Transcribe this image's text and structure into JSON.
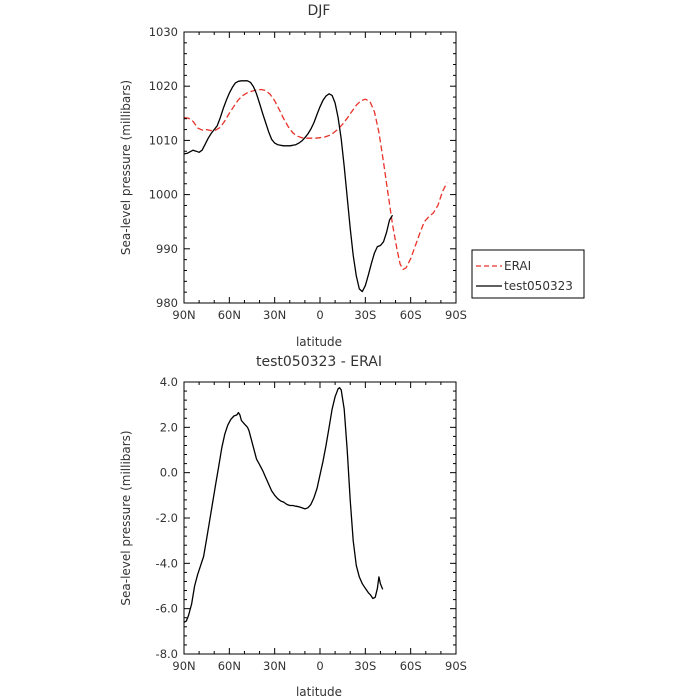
{
  "chart_data": [
    {
      "type": "line",
      "title": "DJF",
      "xlabel": "latitude",
      "ylabel": "Sea-level pressure (millibars)",
      "xlim": [
        90,
        -90
      ],
      "ylim": [
        980,
        1030
      ],
      "x_ticks": [
        90,
        60,
        30,
        0,
        -30,
        -60,
        -90
      ],
      "x_tick_labels": [
        "90N",
        "60N",
        "30N",
        "0",
        "30S",
        "60S",
        "90S"
      ],
      "y_ticks": [
        980,
        990,
        1000,
        1010,
        1020,
        1030
      ],
      "y_tick_labels": [
        "980",
        "990",
        "1000",
        "1010",
        "1020",
        "1030"
      ],
      "grid": false,
      "legend": "outside-right",
      "series": [
        {
          "name": "ERAI",
          "color": "#e8322a",
          "dash": "dashed",
          "points": [
            [
              90,
              1014.2
            ],
            [
              87,
              1014.1
            ],
            [
              84,
              1013.5
            ],
            [
              81,
              1012.3
            ],
            [
              78,
              1011.9
            ],
            [
              75,
              1012.0
            ],
            [
              72,
              1011.8
            ],
            [
              69,
              1011.9
            ],
            [
              66,
              1012.4
            ],
            [
              63,
              1013.6
            ],
            [
              60,
              1015.0
            ],
            [
              57,
              1016.3
            ],
            [
              54,
              1017.5
            ],
            [
              51,
              1018.3
            ],
            [
              48,
              1018.8
            ],
            [
              45,
              1019.1
            ],
            [
              42,
              1019.3
            ],
            [
              39,
              1019.4
            ],
            [
              36,
              1019.2
            ],
            [
              33,
              1018.5
            ],
            [
              30,
              1017.3
            ],
            [
              27,
              1015.7
            ],
            [
              24,
              1014.0
            ],
            [
              21,
              1012.5
            ],
            [
              18,
              1011.4
            ],
            [
              15,
              1010.8
            ],
            [
              12,
              1010.5
            ],
            [
              9,
              1010.4
            ],
            [
              6,
              1010.4
            ],
            [
              3,
              1010.4
            ],
            [
              0,
              1010.5
            ],
            [
              -3,
              1010.6
            ],
            [
              -6,
              1010.9
            ],
            [
              -9,
              1011.4
            ],
            [
              -12,
              1012.1
            ],
            [
              -15,
              1013.0
            ],
            [
              -18,
              1014.1
            ],
            [
              -21,
              1015.3
            ],
            [
              -24,
              1016.5
            ],
            [
              -27,
              1017.3
            ],
            [
              -30,
              1017.6
            ],
            [
              -33,
              1017.2
            ],
            [
              -36,
              1015.3
            ],
            [
              -39,
              1011.5
            ],
            [
              -42,
              1006.0
            ],
            [
              -45,
              1000.2
            ],
            [
              -48,
              994.5
            ],
            [
              -51,
              989.8
            ],
            [
              -53,
              987.2
            ],
            [
              -55,
              986.2
            ],
            [
              -57,
              986.5
            ],
            [
              -60,
              988.2
            ],
            [
              -63,
              990.5
            ],
            [
              -66,
              992.8
            ],
            [
              -69,
              995.0
            ],
            [
              -72,
              995.9
            ],
            [
              -75,
              996.6
            ],
            [
              -78,
              998.0
            ],
            [
              -81,
              1000.5
            ],
            [
              -84,
              1002.2
            ]
          ]
        },
        {
          "name": "test050323",
          "color": "#000000",
          "dash": "solid",
          "points": [
            [
              90,
              1007.5
            ],
            [
              88,
              1007.6
            ],
            [
              86,
              1007.9
            ],
            [
              84,
              1008.2
            ],
            [
              82,
              1008.0
            ],
            [
              80,
              1007.8
            ],
            [
              78,
              1008.2
            ],
            [
              76,
              1009.3
            ],
            [
              74,
              1010.4
            ],
            [
              72,
              1011.3
            ],
            [
              70,
              1012.0
            ],
            [
              68,
              1012.7
            ],
            [
              66,
              1014.2
            ],
            [
              64,
              1015.9
            ],
            [
              62,
              1017.4
            ],
            [
              60,
              1018.7
            ],
            [
              58,
              1019.8
            ],
            [
              56,
              1020.6
            ],
            [
              54,
              1020.9
            ],
            [
              52,
              1021.0
            ],
            [
              50,
              1021.0
            ],
            [
              48,
              1021.0
            ],
            [
              46,
              1020.7
            ],
            [
              44,
              1019.9
            ],
            [
              42,
              1018.6
            ],
            [
              40,
              1016.8
            ],
            [
              38,
              1015.0
            ],
            [
              36,
              1013.3
            ],
            [
              34,
              1011.6
            ],
            [
              32,
              1010.2
            ],
            [
              30,
              1009.5
            ],
            [
              28,
              1009.2
            ],
            [
              26,
              1009.1
            ],
            [
              24,
              1009.0
            ],
            [
              22,
              1009.0
            ],
            [
              20,
              1009.0
            ],
            [
              18,
              1009.1
            ],
            [
              16,
              1009.2
            ],
            [
              14,
              1009.5
            ],
            [
              12,
              1009.9
            ],
            [
              10,
              1010.5
            ],
            [
              8,
              1011.2
            ],
            [
              6,
              1012.1
            ],
            [
              4,
              1013.3
            ],
            [
              2,
              1014.8
            ],
            [
              0,
              1016.2
            ],
            [
              -2,
              1017.4
            ],
            [
              -4,
              1018.2
            ],
            [
              -6,
              1018.6
            ],
            [
              -8,
              1018.3
            ],
            [
              -10,
              1016.9
            ],
            [
              -12,
              1014.2
            ],
            [
              -14,
              1010.3
            ],
            [
              -16,
              1005.2
            ],
            [
              -18,
              999.5
            ],
            [
              -20,
              993.8
            ],
            [
              -22,
              988.8
            ],
            [
              -24,
              985.0
            ],
            [
              -26,
              982.6
            ],
            [
              -28,
              982.1
            ],
            [
              -30,
              983.2
            ],
            [
              -32,
              985.2
            ],
            [
              -34,
              987.3
            ],
            [
              -36,
              989.2
            ],
            [
              -38,
              990.4
            ],
            [
              -40,
              990.6
            ],
            [
              -42,
              991.3
            ],
            [
              -44,
              993.0
            ],
            [
              -46,
              995.3
            ],
            [
              -48,
              996.2
            ]
          ]
        }
      ]
    },
    {
      "type": "line",
      "title": "test050323 - ERAI",
      "xlabel": "latitude",
      "ylabel": "Sea-level pressure (millibars)",
      "xlim": [
        90,
        -90
      ],
      "ylim": [
        -8,
        4
      ],
      "x_ticks": [
        90,
        60,
        30,
        0,
        -30,
        -60,
        -90
      ],
      "x_tick_labels": [
        "90N",
        "60N",
        "30N",
        "0",
        "30S",
        "60S",
        "90S"
      ],
      "y_ticks": [
        -8,
        -6,
        -4,
        -2,
        0,
        2,
        4
      ],
      "y_tick_labels": [
        "-8.0",
        "-6.0",
        "-4.0",
        "-2.0",
        "0.0",
        "2.0",
        "4.0"
      ],
      "grid": false,
      "series": [
        {
          "color": "#000000",
          "dash": "solid",
          "points": [
            [
              90,
              -6.6
            ],
            [
              88.5,
              -6.55
            ],
            [
              87,
              -6.3
            ],
            [
              85,
              -5.8
            ],
            [
              83,
              -5.0
            ],
            [
              81,
              -4.5
            ],
            [
              79,
              -4.1
            ],
            [
              77,
              -3.7
            ],
            [
              75,
              -2.9
            ],
            [
              73,
              -2.1
            ],
            [
              71,
              -1.3
            ],
            [
              69,
              -0.5
            ],
            [
              67,
              0.3
            ],
            [
              65,
              1.1
            ],
            [
              63,
              1.7
            ],
            [
              61,
              2.1
            ],
            [
              59,
              2.35
            ],
            [
              57,
              2.5
            ],
            [
              55,
              2.55
            ],
            [
              54,
              2.65
            ],
            [
              53,
              2.55
            ],
            [
              52,
              2.3
            ],
            [
              50,
              2.15
            ],
            [
              48,
              2.0
            ],
            [
              47,
              1.85
            ],
            [
              46,
              1.6
            ],
            [
              44,
              1.1
            ],
            [
              42,
              0.6
            ],
            [
              40,
              0.35
            ],
            [
              38,
              0.1
            ],
            [
              36,
              -0.2
            ],
            [
              34,
              -0.5
            ],
            [
              32,
              -0.8
            ],
            [
              30,
              -1.0
            ],
            [
              28,
              -1.15
            ],
            [
              26,
              -1.25
            ],
            [
              24,
              -1.3
            ],
            [
              22,
              -1.4
            ],
            [
              20,
              -1.45
            ],
            [
              18,
              -1.45
            ],
            [
              16,
              -1.48
            ],
            [
              14,
              -1.5
            ],
            [
              12,
              -1.55
            ],
            [
              10,
              -1.6
            ],
            [
              8,
              -1.55
            ],
            [
              6,
              -1.4
            ],
            [
              4,
              -1.1
            ],
            [
              2,
              -0.7
            ],
            [
              0,
              -0.1
            ],
            [
              -2,
              0.5
            ],
            [
              -4,
              1.2
            ],
            [
              -6,
              2.0
            ],
            [
              -8,
              2.8
            ],
            [
              -10,
              3.35
            ],
            [
              -12,
              3.7
            ],
            [
              -13,
              3.75
            ],
            [
              -14,
              3.65
            ],
            [
              -16,
              2.8
            ],
            [
              -18,
              1.0
            ],
            [
              -20,
              -1.2
            ],
            [
              -22,
              -3.0
            ],
            [
              -24,
              -4.1
            ],
            [
              -26,
              -4.6
            ],
            [
              -28,
              -4.9
            ],
            [
              -30,
              -5.1
            ],
            [
              -32,
              -5.3
            ],
            [
              -33.5,
              -5.4
            ],
            [
              -35,
              -5.55
            ],
            [
              -36.5,
              -5.5
            ],
            [
              -38,
              -5.1
            ],
            [
              -39,
              -4.6
            ],
            [
              -40,
              -4.9
            ],
            [
              -41.5,
              -5.15
            ]
          ]
        }
      ]
    }
  ]
}
